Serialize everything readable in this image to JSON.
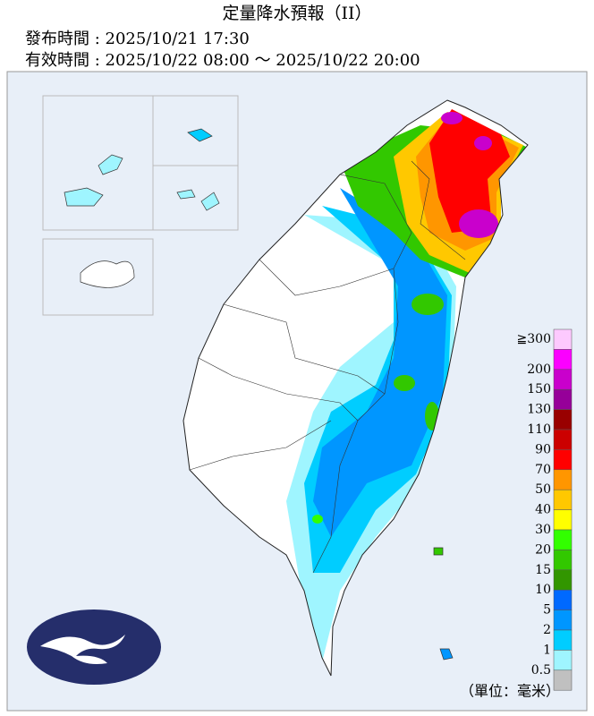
{
  "header": {
    "title": "定量降水預報（II）",
    "issued": "發布時間 : 2025/10/21 17:30",
    "valid": "有效時間 : 2025/10/22 08:00 ～ 2025/10/22 20:00"
  },
  "legend": {
    "unit": "（單位：毫米）",
    "items": [
      {
        "label": "≧300",
        "color": "#fdc9fe"
      },
      {
        "label": "200",
        "color": "#fb00ff"
      },
      {
        "label": "150",
        "color": "#c900cc"
      },
      {
        "label": "130",
        "color": "#960099"
      },
      {
        "label": "110",
        "color": "#990000"
      },
      {
        "label": "90",
        "color": "#cc0000"
      },
      {
        "label": "70",
        "color": "#ff0000"
      },
      {
        "label": "50",
        "color": "#ff9600"
      },
      {
        "label": "40",
        "color": "#ffc800"
      },
      {
        "label": "30",
        "color": "#ffff00"
      },
      {
        "label": "20",
        "color": "#32ff00"
      },
      {
        "label": "15",
        "color": "#32c800"
      },
      {
        "label": "10",
        "color": "#329600"
      },
      {
        "label": "5",
        "color": "#0069ff"
      },
      {
        "label": "2",
        "color": "#0096ff"
      },
      {
        "label": "1",
        "color": "#00cdff"
      },
      {
        "label": "0.5",
        "color": "#9ff5ff"
      }
    ],
    "floor_color": "#c0c0c0"
  }
}
